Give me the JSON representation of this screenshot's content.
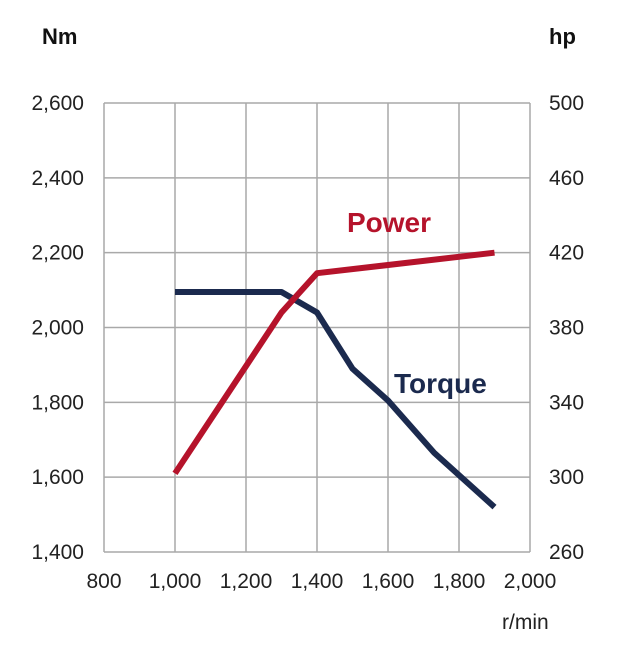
{
  "chart_data": {
    "type": "line",
    "x_axis": {
      "label": "r/min",
      "range": [
        800,
        2000
      ],
      "ticks": [
        800,
        1000,
        1200,
        1400,
        1600,
        1800,
        2000
      ],
      "tick_labels": [
        "800",
        "1,000",
        "1,200",
        "1,400",
        "1,600",
        "1,800",
        "2,000"
      ]
    },
    "y_axis_left": {
      "unit": "Nm",
      "range": [
        1400,
        2600
      ],
      "ticks": [
        1400,
        1600,
        1800,
        2000,
        2200,
        2400,
        2600
      ],
      "tick_labels": [
        "1,400",
        "1,600",
        "1,800",
        "2,000",
        "2,200",
        "2,400",
        "2,600"
      ]
    },
    "y_axis_right": {
      "unit": "hp",
      "range": [
        260,
        500
      ],
      "ticks": [
        260,
        300,
        340,
        380,
        420,
        460,
        500
      ],
      "tick_labels": [
        "260",
        "300",
        "340",
        "380",
        "420",
        "460",
        "500"
      ]
    },
    "grid": true,
    "series": [
      {
        "name": "Torque",
        "axis": "left",
        "color": "#1b2a4e",
        "points": [
          [
            1000,
            2095
          ],
          [
            1300,
            2095
          ],
          [
            1400,
            2040
          ],
          [
            1500,
            1890
          ],
          [
            1600,
            1805
          ],
          [
            1730,
            1665
          ],
          [
            1900,
            1520
          ]
        ]
      },
      {
        "name": "Power",
        "axis": "right",
        "color": "#b5132b",
        "points": [
          [
            1000,
            302
          ],
          [
            1300,
            388
          ],
          [
            1400,
            409
          ],
          [
            1900,
            420
          ]
        ]
      }
    ]
  }
}
